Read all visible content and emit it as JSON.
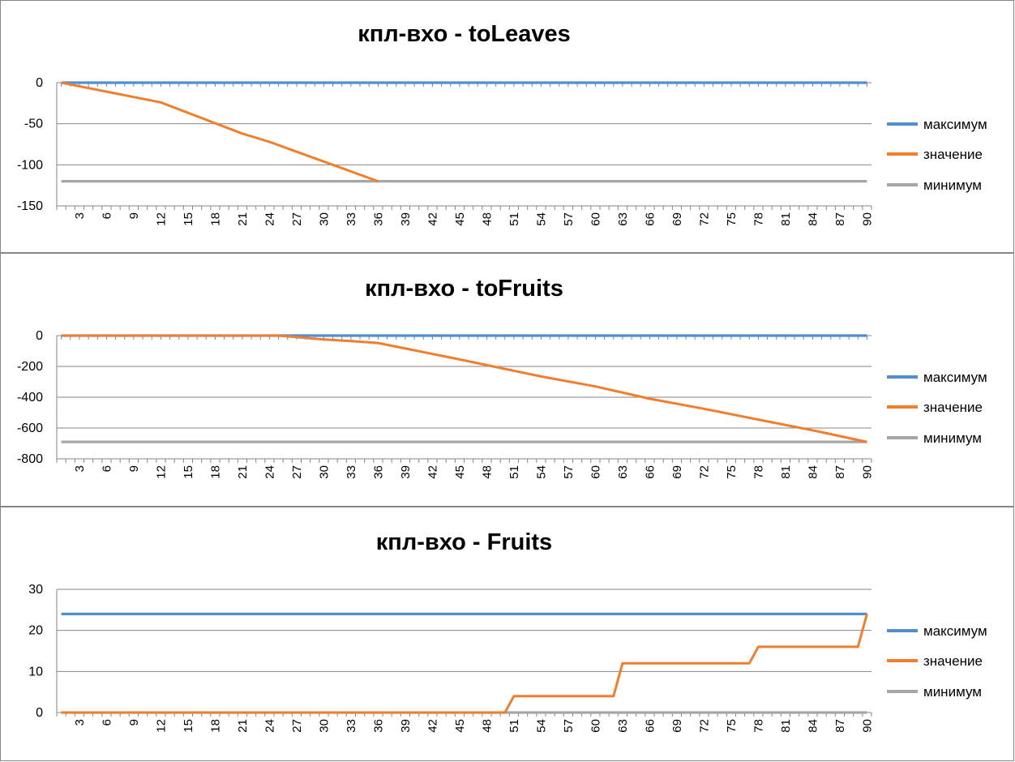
{
  "colors": {
    "максимум": "#4F8FCD",
    "значение": "#F07E2D",
    "минимум": "#A6A6A6",
    "gridline": "#868686",
    "axis": "#868686"
  },
  "chart_data": [
    {
      "type": "line",
      "title": "кпл-вхо - toLeaves",
      "xlabel": "",
      "ylabel": "",
      "ylim": [
        -150,
        0
      ],
      "yticks": [
        0,
        -50,
        -100,
        -150
      ],
      "ytick_labels": [
        "0",
        "-50",
        "-100",
        "-150"
      ],
      "xlim": [
        1,
        90
      ],
      "xtick_labels": [
        "3",
        "6",
        "9",
        "12",
        "15",
        "18",
        "21",
        "24",
        "27",
        "30",
        "33",
        "36",
        "39",
        "42",
        "45",
        "48",
        "51",
        "54",
        "57",
        "60",
        "63",
        "66",
        "69",
        "72",
        "75",
        "78",
        "81",
        "84",
        "87",
        "90"
      ],
      "grid": true,
      "legend_position": "right",
      "series": [
        {
          "name": "максимум",
          "x": [
            1,
            90
          ],
          "y": [
            0,
            0
          ]
        },
        {
          "name": "значение",
          "x": [
            1,
            12,
            21,
            24,
            36
          ],
          "y": [
            0,
            -24,
            -62,
            -72,
            -120
          ]
        },
        {
          "name": "минимум",
          "x": [
            1,
            90
          ],
          "y": [
            -120,
            -120
          ]
        }
      ]
    },
    {
      "type": "line",
      "title": "кпл-вхо - toFruits",
      "xlabel": "",
      "ylabel": "",
      "ylim": [
        -800,
        0
      ],
      "yticks": [
        0,
        -200,
        -400,
        -600,
        -800
      ],
      "ytick_labels": [
        "0",
        "-200",
        "-400",
        "-600",
        "-800"
      ],
      "xlim": [
        1,
        90
      ],
      "xtick_labels": [
        "3",
        "6",
        "9",
        "12",
        "15",
        "18",
        "21",
        "24",
        "27",
        "30",
        "33",
        "36",
        "39",
        "42",
        "45",
        "48",
        "51",
        "54",
        "57",
        "60",
        "63",
        "66",
        "69",
        "72",
        "75",
        "78",
        "81",
        "84",
        "87",
        "90"
      ],
      "grid": true,
      "legend_position": "right",
      "series": [
        {
          "name": "максимум",
          "x": [
            1,
            90
          ],
          "y": [
            0,
            0
          ]
        },
        {
          "name": "значение",
          "x": [
            1,
            25,
            30,
            33,
            36,
            45,
            54,
            60,
            66,
            72,
            78,
            84,
            90
          ],
          "y": [
            0,
            0,
            -25,
            -35,
            -48,
            -155,
            -265,
            -330,
            -410,
            -475,
            -545,
            -615,
            -690
          ]
        },
        {
          "name": "минимум",
          "x": [
            1,
            90
          ],
          "y": [
            -690,
            -690
          ]
        }
      ]
    },
    {
      "type": "line",
      "title": "кпл-вхо - Fruits",
      "xlabel": "",
      "ylabel": "",
      "ylim": [
        0,
        30
      ],
      "yticks": [
        0,
        10,
        20,
        30
      ],
      "ytick_labels": [
        "0",
        "10",
        "20",
        "30"
      ],
      "xlim": [
        1,
        90
      ],
      "xtick_labels": [
        "3",
        "6",
        "9",
        "12",
        "15",
        "18",
        "21",
        "24",
        "27",
        "30",
        "33",
        "36",
        "39",
        "42",
        "45",
        "48",
        "51",
        "54",
        "57",
        "60",
        "63",
        "66",
        "69",
        "72",
        "75",
        "78",
        "81",
        "84",
        "87",
        "90"
      ],
      "grid": true,
      "legend_position": "right",
      "series": [
        {
          "name": "максимум",
          "x": [
            1,
            90
          ],
          "y": [
            24,
            24
          ]
        },
        {
          "name": "значение",
          "x": [
            1,
            50,
            51,
            62,
            63,
            77,
            78,
            89,
            90
          ],
          "y": [
            0,
            0,
            4,
            4,
            12,
            12,
            16,
            16,
            24
          ]
        },
        {
          "name": "минимум",
          "x": [
            1,
            90
          ],
          "y": [
            0,
            0
          ]
        }
      ]
    }
  ]
}
